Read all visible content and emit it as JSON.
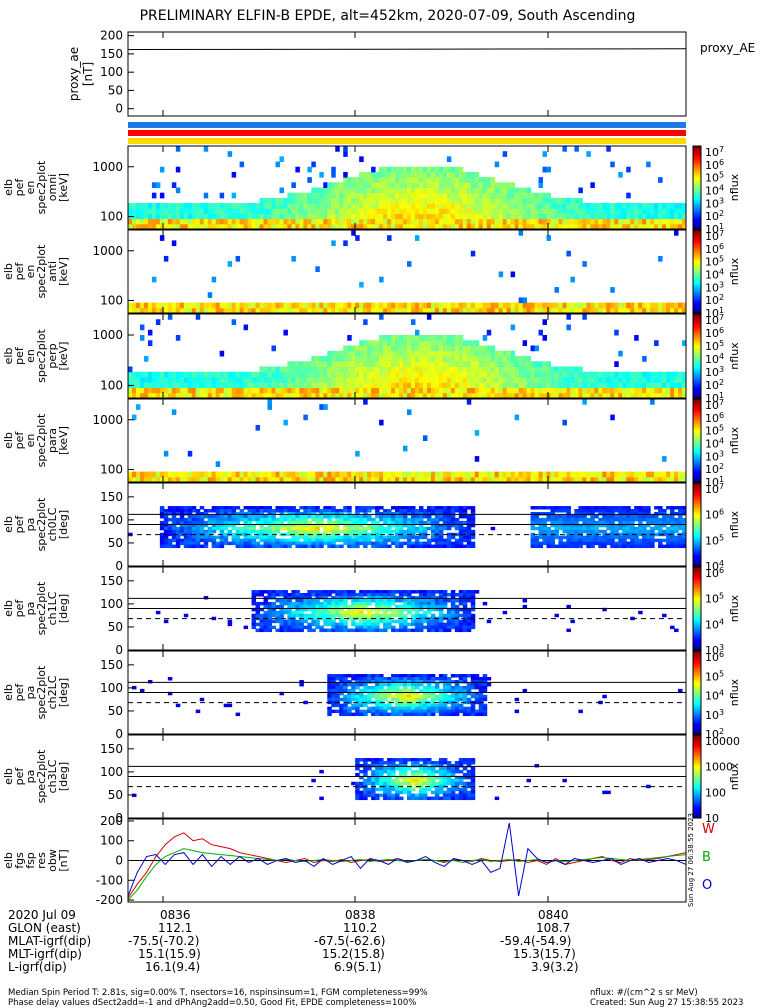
{
  "title": "PRELIMINARY ELFIN-B EPDE, alt=452km, 2020-07-09, South Ascending",
  "colors": {
    "blue_bar": "#1e78e6",
    "red_bar": "#ff0000",
    "yellow_bar": "#ffd700",
    "trace_W": "#d40000",
    "trace_B": "#00b000",
    "trace_O": "#0000cc"
  },
  "chart_data": [
    {
      "type": "line",
      "panel": "proxy_ae",
      "ylabel": [
        "proxy_ae",
        "[nT]"
      ],
      "yticks": [
        "200",
        "150",
        "100",
        "50",
        "0"
      ],
      "ylim": [
        -20,
        210
      ],
      "legend": "proxy_AE",
      "series": [
        {
          "name": "proxy_AE",
          "x": [
            "08:35",
            "08:41"
          ],
          "values": [
            162,
            164
          ]
        }
      ]
    },
    {
      "type": "heatmap",
      "panel": "elb_pef_en_spec2plot_omni",
      "ylabel": [
        "elb",
        "pef",
        "en",
        "spec2plot",
        "omni",
        "[keV]"
      ],
      "yticks": [
        "1000",
        "100"
      ],
      "scale": "log",
      "colorbar": {
        "label": "nflux",
        "ticks": [
          "10^7",
          "10^6",
          "10^5",
          "10^4",
          "10^3",
          "10^2",
          "10^1"
        ]
      }
    },
    {
      "type": "heatmap",
      "panel": "elb_pef_en_spec2plot_anti",
      "ylabel": [
        "elb",
        "pef",
        "en",
        "spec2plot",
        "anti",
        "[keV]"
      ],
      "yticks": [
        "1000",
        "100"
      ],
      "scale": "log",
      "colorbar": {
        "label": "nflux",
        "ticks": [
          "10^7",
          "10^6",
          "10^5",
          "10^4",
          "10^3",
          "10^2",
          "10^1"
        ]
      }
    },
    {
      "type": "heatmap",
      "panel": "elb_pef_en_spec2plot_perp",
      "ylabel": [
        "elb",
        "pef",
        "en",
        "spec2plot",
        "perp",
        "[keV]"
      ],
      "yticks": [
        "1000",
        "100"
      ],
      "scale": "log",
      "colorbar": {
        "label": "nflux",
        "ticks": [
          "10^7",
          "10^6",
          "10^5",
          "10^4",
          "10^3",
          "10^2",
          "10^1"
        ]
      }
    },
    {
      "type": "heatmap",
      "panel": "elb_pef_en_spec2plot_para",
      "ylabel": [
        "elb",
        "pef",
        "en",
        "spec2plot",
        "para",
        "[keV]"
      ],
      "yticks": [
        "1000",
        "100"
      ],
      "scale": "log",
      "colorbar": {
        "label": "nflux",
        "ticks": [
          "10^7",
          "10^6",
          "10^5",
          "10^4",
          "10^3",
          "10^2",
          "10^1"
        ]
      }
    },
    {
      "type": "heatmap",
      "panel": "elb_pef_pa_spec2plot_ch0LC",
      "ylabel": [
        "elb",
        "pef",
        "pa",
        "spec2plot",
        "ch0LC",
        "[deg]"
      ],
      "yticks": [
        "150",
        "100",
        "50",
        "0"
      ],
      "ylim": [
        0,
        180
      ],
      "colorbar": {
        "label": "nflux",
        "ticks": [
          "10^7",
          "10^6",
          "10^5",
          "10^4"
        ]
      }
    },
    {
      "type": "heatmap",
      "panel": "elb_pef_pa_spec2plot_ch1LC",
      "ylabel": [
        "elb",
        "pef",
        "pa",
        "spec2plot",
        "ch1LC",
        "[deg]"
      ],
      "yticks": [
        "150",
        "100",
        "50",
        "0"
      ],
      "ylim": [
        0,
        180
      ],
      "colorbar": {
        "label": "nflux",
        "ticks": [
          "10^6",
          "10^5",
          "10^4",
          "10^3"
        ]
      }
    },
    {
      "type": "heatmap",
      "panel": "elb_pef_pa_spec2plot_ch2LC",
      "ylabel": [
        "elb",
        "pef",
        "pa",
        "spec2plot",
        "ch2LC",
        "[deg]"
      ],
      "yticks": [
        "150",
        "100",
        "50",
        "0"
      ],
      "ylim": [
        0,
        180
      ],
      "colorbar": {
        "label": "nflux",
        "ticks": [
          "10^6",
          "10^5",
          "10^4",
          "10^3",
          "10^2"
        ]
      }
    },
    {
      "type": "heatmap",
      "panel": "elb_pef_pa_spec2plot_ch3LC",
      "ylabel": [
        "elb",
        "pef",
        "pa",
        "spec2plot",
        "ch3LC",
        "[deg]"
      ],
      "yticks": [
        "150",
        "100",
        "50",
        "0"
      ],
      "ylim": [
        0,
        180
      ],
      "colorbar": {
        "label": "nflux",
        "ticks": [
          "10000",
          "1000",
          "100",
          "10"
        ]
      }
    },
    {
      "type": "line",
      "panel": "elb_fgs_fsp_res_obw",
      "ylabel": [
        "elb",
        "fgs",
        "fsp",
        "res",
        "obw",
        "[nT]"
      ],
      "yticks": [
        "200",
        "100",
        "0",
        "-100",
        "-200"
      ],
      "ylim": [
        -210,
        210
      ],
      "legend": [
        "W",
        "B",
        "O"
      ],
      "series": [
        {
          "name": "W",
          "values": [
            -190,
            -120,
            -60,
            20,
            80,
            120,
            140,
            100,
            110,
            80,
            70,
            60,
            40,
            30,
            20,
            10,
            0,
            -10,
            0,
            10,
            -10,
            0,
            -5,
            5,
            -10,
            0,
            5,
            -5,
            0,
            10,
            -5,
            0,
            5,
            0,
            -10,
            5,
            0,
            -5,
            10,
            0,
            -5,
            0,
            5,
            -10,
            0,
            -20,
            10,
            -20,
            -10,
            0,
            10,
            20,
            0,
            -10,
            10,
            0,
            5,
            10,
            20,
            30,
            40
          ]
        },
        {
          "name": "B",
          "values": [
            -200,
            -150,
            -80,
            -20,
            20,
            40,
            60,
            50,
            40,
            35,
            30,
            25,
            20,
            15,
            10,
            5,
            0,
            5,
            0,
            -5,
            0,
            5,
            0,
            -5,
            0,
            5,
            -5,
            0,
            5,
            0,
            -5,
            0,
            5,
            0,
            -5,
            0,
            -10,
            0,
            5,
            -5,
            0,
            5,
            -5,
            0,
            5,
            -10,
            0,
            -5,
            0,
            5,
            10,
            15,
            10,
            5,
            0,
            5,
            10,
            15,
            20,
            25,
            30
          ]
        },
        {
          "name": "O",
          "values": [
            -180,
            -60,
            20,
            30,
            -20,
            30,
            40,
            -20,
            30,
            -30,
            20,
            -20,
            20,
            -10,
            10,
            -20,
            0,
            10,
            -10,
            0,
            -30,
            10,
            -20,
            0,
            20,
            -40,
            10,
            0,
            -20,
            10,
            -10,
            0,
            20,
            -10,
            -30,
            10,
            0,
            -20,
            0,
            -60,
            -40,
            190,
            -180,
            60,
            10,
            -10,
            0,
            -20,
            10,
            0,
            -10,
            0,
            10,
            -20,
            0,
            10,
            -10,
            0,
            10,
            0,
            -20
          ]
        }
      ],
      "side_text": "Sun Aug 27 06:38:55 2023"
    }
  ],
  "x_axis": {
    "ticks": [
      "0836",
      "0838",
      "0840"
    ]
  },
  "ephemeris": {
    "date": "2020 Jul 09",
    "rows": [
      {
        "label": "GLON (east)",
        "values": [
          "112.1",
          "110.2",
          "108.7"
        ]
      },
      {
        "label": "MLAT-igrf(dip)",
        "values": [
          "-75.5(-70.2)",
          "-67.5(-62.6)",
          "-59.4(-54.9)"
        ]
      },
      {
        "label": "MLT-igrf(dip)",
        "values": [
          "15.1(15.9)",
          "15.2(15.8)",
          "15.3(15.7)"
        ]
      },
      {
        "label": "L-igrf(dip)",
        "values": [
          "16.1(9.4)",
          "6.9(5.1)",
          "3.9(3.2)"
        ]
      }
    ]
  },
  "footer": {
    "line1": "Median Spin Period T: 2.81s, sig=0.00% T, nsectors=16, nspinsinsum=1, FGM completeness=99%",
    "line2": "Phase delay values dSect2add=-1 and dPhAng2add=0.50, Good Fit, EPDE completeness=100%",
    "right1": "nflux: #/(cm^2 s sr MeV)",
    "right2": "Created: Sun Aug 27 15:38:55 2023"
  }
}
